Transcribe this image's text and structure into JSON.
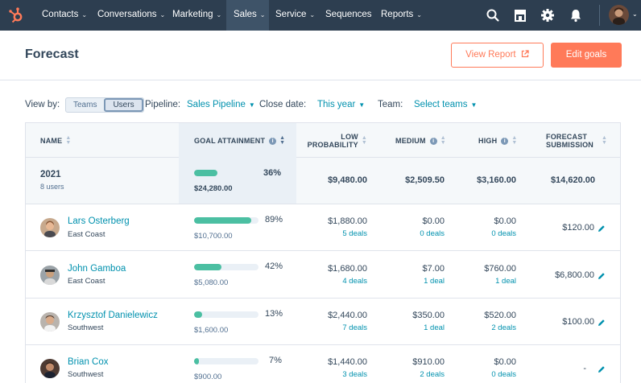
{
  "nav": {
    "items": [
      {
        "label": "Contacts"
      },
      {
        "label": "Conversations"
      },
      {
        "label": "Marketing"
      },
      {
        "label": "Sales"
      },
      {
        "label": "Service"
      },
      {
        "label": "Sequences"
      },
      {
        "label": "Reports"
      }
    ],
    "icons": [
      "search-icon",
      "marketplace-icon",
      "settings-icon",
      "notifications-icon"
    ],
    "chevron": "⌄",
    "colors": {
      "bar": "#2d3e50",
      "accent": "#ff7a59",
      "link": "#0091ae",
      "progress": "#4bbfa2"
    }
  },
  "header": {
    "title": "Forecast",
    "view_report": "View Report",
    "edit_goals": "Edit goals"
  },
  "filters": {
    "view_by_label": "View by:",
    "view_by_options": [
      "Teams",
      "Users"
    ],
    "view_by_selected": "Users",
    "pipeline_label": "Pipeline:",
    "pipeline_value": "Sales Pipeline",
    "close_date_label": "Close date:",
    "close_date_value": "This year",
    "team_label": "Team:",
    "team_value": "Select teams"
  },
  "table": {
    "columns": {
      "name": "NAME",
      "goal": "GOAL ATTAINMENT",
      "low_1": "LOW",
      "low_2": "PROBABILITY",
      "medium": "MEDIUM",
      "high": "HIGH",
      "forecast_1": "FORECAST",
      "forecast_2": "SUBMISSION"
    },
    "total": {
      "year": "2021",
      "users": "8 users",
      "attainment_pct": 36,
      "attainment_label": "36%",
      "goal": "$24,280.00",
      "low": "$9,480.00",
      "medium": "$2,509.50",
      "high": "$3,160.00",
      "forecast": "$14,620.00"
    },
    "rows": [
      {
        "name": "Lars Osterberg",
        "team": "East Coast",
        "attainment_pct": 89,
        "attainment_label": "89%",
        "goal": "$10,700.00",
        "low": "$1,880.00",
        "low_deals": "5 deals",
        "medium": "$0.00",
        "medium_deals": "0 deals",
        "high": "$0.00",
        "high_deals": "0 deals",
        "forecast": "$120.00"
      },
      {
        "name": "John Gamboa",
        "team": "East Coast",
        "attainment_pct": 42,
        "attainment_label": "42%",
        "goal": "$5,080.00",
        "low": "$1,680.00",
        "low_deals": "4 deals",
        "medium": "$7.00",
        "medium_deals": "1 deal",
        "high": "$760.00",
        "high_deals": "1 deal",
        "forecast": "$6,800.00"
      },
      {
        "name": "Krzysztof Danielewicz",
        "team": "Southwest",
        "attainment_pct": 13,
        "attainment_label": "13%",
        "goal": "$1,600.00",
        "low": "$2,440.00",
        "low_deals": "7 deals",
        "medium": "$350.00",
        "medium_deals": "1 deal",
        "high": "$520.00",
        "high_deals": "2 deals",
        "forecast": "$100.00"
      },
      {
        "name": "Brian Cox",
        "team": "Southwest",
        "attainment_pct": 7,
        "attainment_label": "7%",
        "goal": "$900.00",
        "low": "$1,440.00",
        "low_deals": "3 deals",
        "medium": "$910.00",
        "medium_deals": "2 deals",
        "high": "$0.00",
        "high_deals": "0 deals",
        "forecast": "-"
      }
    ]
  }
}
